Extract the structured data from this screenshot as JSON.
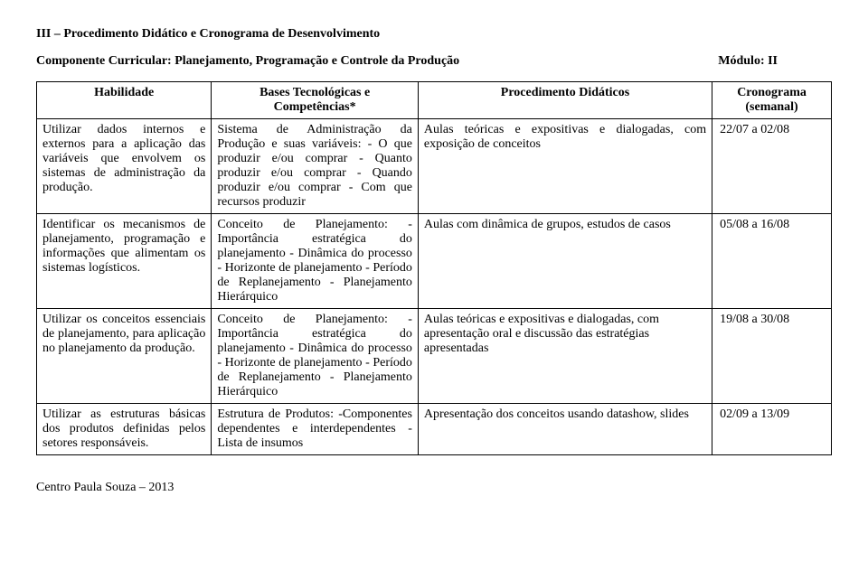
{
  "section_title": "III – Procedimento Didático e Cronograma de Desenvolvimento",
  "componente_label": "Componente Curricular: Planejamento, Programação e Controle da Produção",
  "modulo_label": "Módulo: II",
  "headers": {
    "h1": "Habilidade",
    "h2": "Bases Tecnológicas e Competências*",
    "h3": "Procedimento Didáticos",
    "h4": "Cronograma (semanal)"
  },
  "rows": [
    {
      "habilidade": "Utilizar dados internos e externos para a aplicação das variáveis que envolvem os sistemas de administração da produção.",
      "bases": "Sistema de Administração da Produção e suas variáveis:\n - O que produzir e/ou comprar\n - Quanto produzir e/ou comprar\n - Quando produzir e/ou comprar\n - Com que recursos produzir",
      "procedimento": "Aulas teóricas e expositivas e dialogadas,   com exposição de conceitos",
      "cronograma": "22/07  a  02/08"
    },
    {
      "habilidade": "Identificar os mecanismos de planejamento, programação e informações que alimentam os sistemas logísticos.",
      "bases": "Conceito de Planejamento:\n -Importância estratégica do planejamento\n - Dinâmica do processo\n - Horizonte de planejamento\n - Período de Replanejamento\n - Planejamento Hierárquico",
      "procedimento": "Aulas com dinâmica de grupos, estudos de casos",
      "cronograma": "05/08   a   16/08"
    },
    {
      "habilidade": "Utilizar os conceitos essenciais de planejamento, para aplicação no planejamento da produção.",
      "bases": "Conceito de Planejamento:\n -Importância estratégica do planejamento\n - Dinâmica do processo\n - Horizonte de planejamento\n - Período de Replanejamento\n - Planejamento Hierárquico",
      "procedimento": "Aulas teóricas e expositivas e dialogadas, com apresentação oral e discussão  das estratégias apresentadas",
      "cronograma": "19/08   a   30/08"
    },
    {
      "habilidade": "Utilizar as estruturas básicas dos produtos definidas pelos setores responsáveis.",
      "bases": "Estrutura de Produtos:\n -Componentes dependentes e interdependentes\n - Lista de insumos",
      "procedimento": "Apresentação dos conceitos usando datashow, slides",
      "cronograma": "02/09   a   13/09"
    }
  ],
  "footer": "Centro Paula Souza – 2013"
}
